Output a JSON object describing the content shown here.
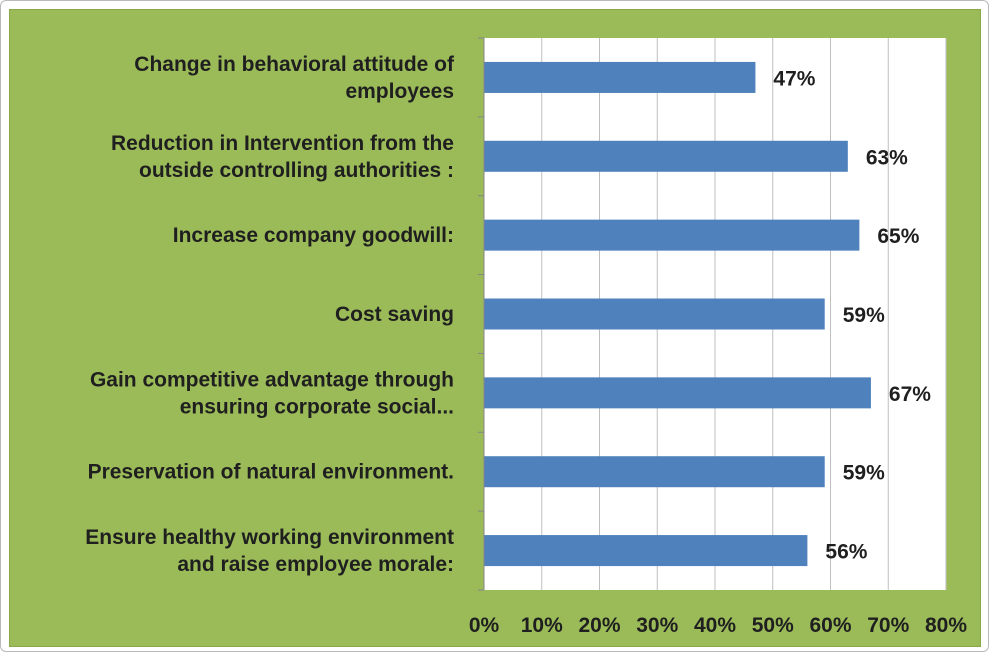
{
  "chart_data": {
    "type": "bar",
    "orientation": "horizontal",
    "categories": [
      [
        "Change in behavioral attitude of",
        "employees"
      ],
      [
        "Reduction in Intervention from the",
        "outside controlling authorities :"
      ],
      [
        "Increase company goodwill:"
      ],
      [
        "Cost saving"
      ],
      [
        "Gain competitive advantage through",
        "ensuring corporate social..."
      ],
      [
        "Preservation of natural environment."
      ],
      [
        "Ensure healthy working environment",
        "and raise employee morale:"
      ]
    ],
    "values": [
      47,
      63,
      65,
      59,
      67,
      59,
      56
    ],
    "data_labels": [
      "47%",
      "63%",
      "65%",
      "59%",
      "67%",
      "59%",
      "56%"
    ],
    "xlim": [
      0,
      80
    ],
    "x_ticks": [
      "0%",
      "10%",
      "20%",
      "30%",
      "40%",
      "50%",
      "60%",
      "70%",
      "80%"
    ],
    "grid": "vertical",
    "legend": "none",
    "colors": {
      "background": "#9bbb59",
      "plot_background": "#ffffff",
      "bar": "#4f81bd",
      "text": "#1f1f1f",
      "gridline": "#bfbfbf"
    }
  }
}
